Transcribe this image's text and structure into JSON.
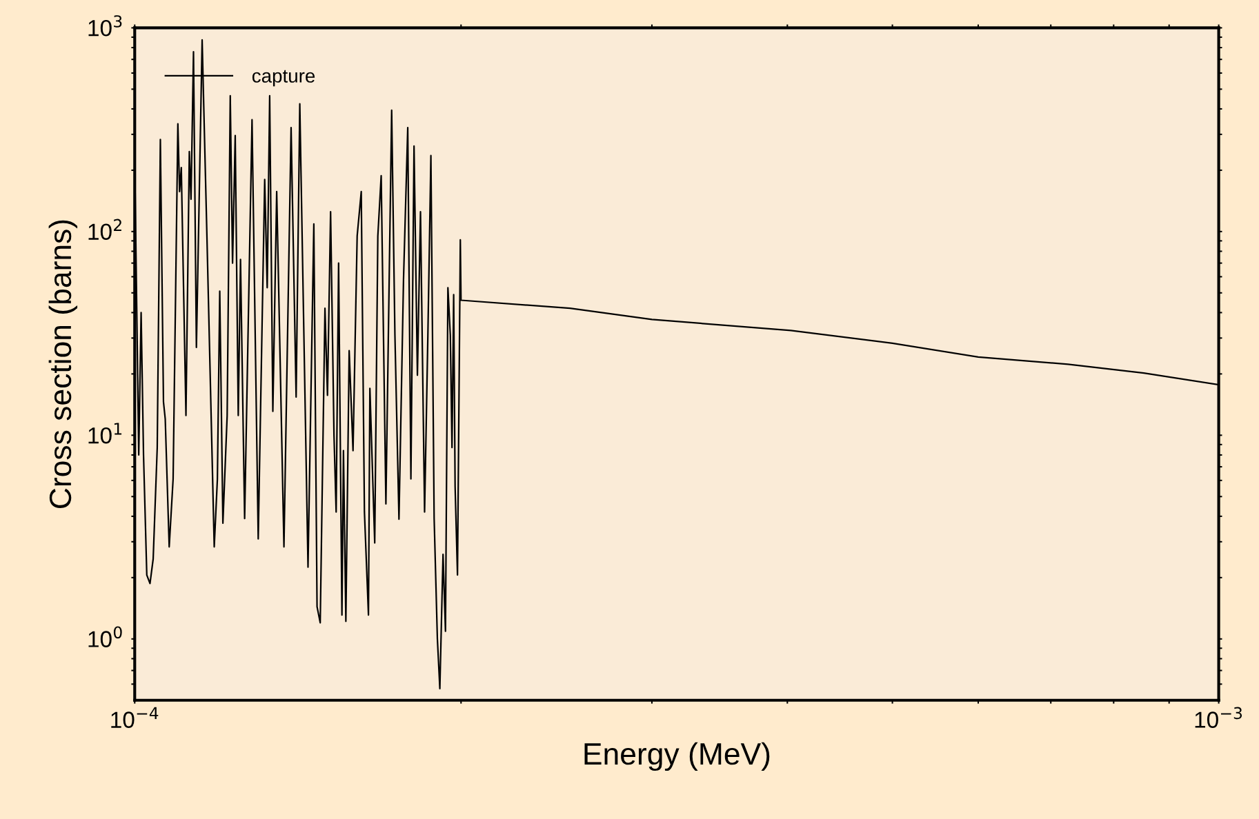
{
  "chart_data": {
    "type": "line",
    "xlabel": "Energy (MeV)",
    "ylabel": "Cross section (barns)",
    "log": "xy",
    "grid": false,
    "legend": "top left",
    "xlim": [
      0.0001,
      0.001
    ],
    "xticks": [
      {
        "value": 0.0001,
        "label": "10$^{−4}$"
      },
      {
        "value": 0.0002,
        "label": null
      },
      {
        "value": 0.0003,
        "label": null
      },
      {
        "value": 0.0004,
        "label": null
      },
      {
        "value": 0.0005,
        "label": null
      },
      {
        "value": 0.0006,
        "label": null
      },
      {
        "value": 0.0007,
        "label": null
      },
      {
        "value": 0.0008,
        "label": null
      },
      {
        "value": 0.0009,
        "label": null
      },
      {
        "value": 0.001,
        "label": "10$^{−3}$"
      }
    ],
    "ylim": [
      0.5,
      1000
    ],
    "yticks": [
      {
        "value": 0.6,
        "label": null
      },
      {
        "value": 0.7,
        "label": null
      },
      {
        "value": 0.8,
        "label": null
      },
      {
        "value": 0.9,
        "label": null
      },
      {
        "value": 1,
        "label": "10$^{0}$"
      },
      {
        "value": 2,
        "label": null
      },
      {
        "value": 3,
        "label": null
      },
      {
        "value": 4,
        "label": null
      },
      {
        "value": 5,
        "label": null
      },
      {
        "value": 6,
        "label": null
      },
      {
        "value": 7,
        "label": null
      },
      {
        "value": 8,
        "label": null
      },
      {
        "value": 9,
        "label": null
      },
      {
        "value": 10,
        "label": "10$^{1}$"
      },
      {
        "value": 20,
        "label": null
      },
      {
        "value": 30,
        "label": null
      },
      {
        "value": 40,
        "label": null
      },
      {
        "value": 50,
        "label": null
      },
      {
        "value": 60,
        "label": null
      },
      {
        "value": 70,
        "label": null
      },
      {
        "value": 80,
        "label": null
      },
      {
        "value": 90,
        "label": null
      },
      {
        "value": 100,
        "label": "10$^{2}$"
      },
      {
        "value": 200,
        "label": null
      },
      {
        "value": 300,
        "label": null
      },
      {
        "value": 400,
        "label": null
      },
      {
        "value": 500,
        "label": null
      },
      {
        "value": 600,
        "label": null
      },
      {
        "value": 700,
        "label": null
      },
      {
        "value": 800,
        "label": null
      },
      {
        "value": 900,
        "label": null
      },
      {
        "value": 1000,
        "label": "10$^{3}$"
      }
    ],
    "series": [
      {
        "name": "capture",
        "color": "#000000",
        "x": [
          0.0001,
          0.00010086,
          0.00010137,
          0.00010189,
          0.0001026,
          0.0001033,
          0.000104,
          0.0001049,
          0.0001056,
          0.0001063,
          0.0001067,
          0.0001076,
          0.0001085,
          0.0001096,
          0.00011,
          0.0001104,
          0.0001115,
          0.0001123,
          0.0001127,
          0.0001133,
          0.000114,
          0.0001154,
          0.0001166,
          0.0001184,
          0.0001192,
          0.0001198,
          0.0001206,
          0.0001217,
          0.0001225,
          0.0001231,
          0.0001238,
          0.0001246,
          0.0001252,
          0.0001263,
          0.0001283,
          0.00013,
          0.0001318,
          0.0001325,
          0.0001332,
          0.0001341,
          0.0001352,
          0.0001373,
          0.0001394,
          0.0001409,
          0.000142,
          0.0001445,
          0.0001463,
          0.0001473,
          0.0001483,
          0.0001498,
          0.0001506,
          0.0001516,
          0.0001527,
          0.0001534,
          0.0001542,
          0.0001553,
          0.0001558,
          0.0001566,
          0.0001577,
          0.000159,
          0.0001604,
          0.0001618,
          0.0001629,
          0.0001643,
          0.0001648,
          0.0001665,
          0.0001676,
          0.0001688,
          0.0001705,
          0.0001726,
          0.0001738,
          0.0001753,
          0.000177,
          0.0001786,
          0.0001798,
          0.000181,
          0.0001823,
          0.0001835,
          0.0001851,
          0.0001864,
          0.0001876,
          0.0001889,
          0.0001902,
          0.0001912,
          0.0001925,
          0.0001935,
          0.0001945,
          0.0001955,
          0.0001962,
          0.0001969,
          0.0001975,
          0.0001985,
          0.0001997,
          0.0002,
          0.0002521,
          0.0003,
          0.000403,
          0.0005,
          0.0006,
          0.000726,
          0.000853,
          0.001
        ],
        "values": [
          225,
          8.0,
          40,
          8,
          2.06,
          1.87,
          2.47,
          8.7,
          283,
          14.6,
          12,
          2.83,
          6.1,
          338,
          157,
          206,
          12.5,
          247,
          144,
          763,
          27,
          873,
          91,
          2.83,
          6.1,
          51,
          3.7,
          12.5,
          464,
          70,
          296,
          12.5,
          73,
          3.9,
          354,
          3.1,
          180,
          53,
          464,
          13.1,
          157,
          2.83,
          324,
          15.4,
          424,
          2.25,
          109,
          1.44,
          1.2,
          42,
          15.7,
          125,
          10,
          4.2,
          70,
          1.31,
          8.4,
          1.22,
          26,
          8.4,
          95,
          157,
          4.2,
          1.31,
          17,
          2.96,
          95,
          188,
          4.6,
          394,
          31,
          3.87,
          58,
          324,
          6.1,
          263,
          19.7,
          125,
          4.2,
          31,
          236,
          3.9,
          1.0,
          0.57,
          2.6,
          1.09,
          53,
          31,
          8.7,
          49,
          5.6,
          2.06,
          91,
          46,
          42,
          37,
          32.7,
          28.3,
          24.2,
          22.3,
          20.2,
          17.7
        ]
      }
    ]
  }
}
